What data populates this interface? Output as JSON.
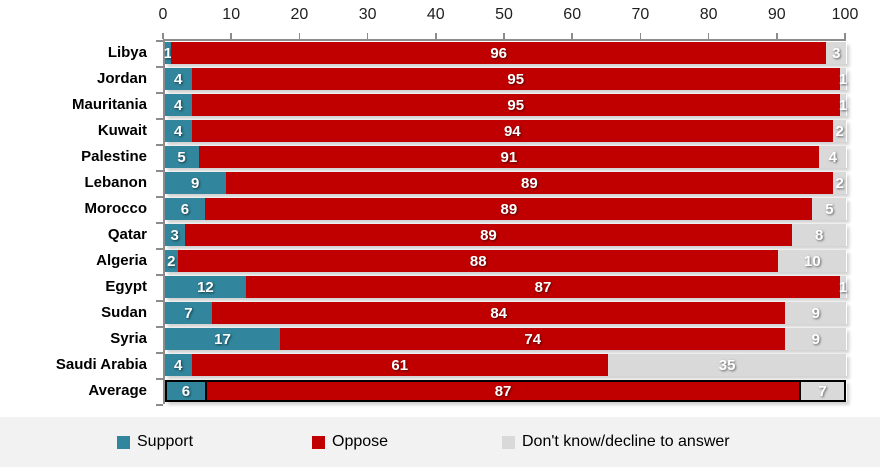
{
  "chart_data": {
    "type": "bar",
    "stacked": true,
    "orientation": "horizontal",
    "title": "",
    "categories": [
      "Libya",
      "Jordan",
      "Mauritania",
      "Kuwait",
      "Palestine",
      "Lebanon",
      "Morocco",
      "Qatar",
      "Algeria",
      "Egypt",
      "Sudan",
      "Syria",
      "Saudi Arabia",
      "Average"
    ],
    "series": [
      {
        "name": "Support",
        "color": "#31859C",
        "values": [
          1,
          4,
          4,
          4,
          5,
          9,
          6,
          3,
          2,
          12,
          7,
          17,
          4,
          6
        ]
      },
      {
        "name": "Oppose",
        "color": "#C00000",
        "values": [
          96,
          95,
          95,
          94,
          91,
          89,
          89,
          89,
          88,
          87,
          84,
          74,
          61,
          87
        ]
      },
      {
        "name": "Don't know/decline to answer",
        "color": "#D9D9D9",
        "values": [
          3,
          1,
          1,
          2,
          4,
          2,
          5,
          8,
          10,
          1,
          9,
          9,
          35,
          7
        ]
      }
    ],
    "x_axis": {
      "position": "top",
      "range": [
        0,
        100
      ],
      "ticks": [
        0,
        10,
        20,
        30,
        40,
        50,
        60,
        70,
        80,
        90,
        100
      ]
    },
    "legend": {
      "position": "bottom"
    },
    "highlight_category": "Average",
    "style_colors": {
      "axis": "#8C8C8C",
      "background": "#FFFFFF",
      "legend_band": "#F2F2F2",
      "bar_value_label": "#FFFFFF",
      "category_label": "#000000",
      "highlight_border": "#000000"
    }
  }
}
